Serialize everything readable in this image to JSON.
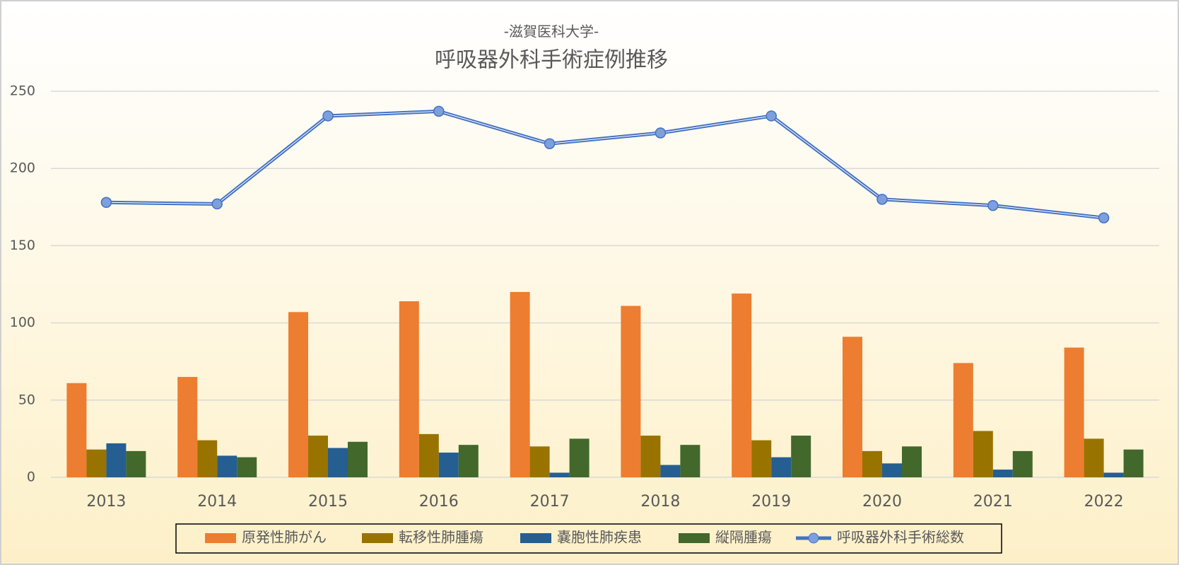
{
  "chart_data": {
    "type": "bar",
    "subtitle": "-滋賀医科大学-",
    "title": "呼吸器外科手術症例推移",
    "categories": [
      "2013",
      "2014",
      "2015",
      "2016",
      "2017",
      "2018",
      "2019",
      "2020",
      "2021",
      "2022"
    ],
    "series": [
      {
        "name": "原発性肺がん",
        "type": "bar",
        "color": "#ed7d31",
        "values": [
          61,
          65,
          107,
          114,
          120,
          111,
          119,
          91,
          74,
          84
        ]
      },
      {
        "name": "転移性肺腫瘍",
        "type": "bar",
        "color": "#997300",
        "values": [
          18,
          24,
          27,
          28,
          20,
          27,
          24,
          17,
          30,
          25
        ]
      },
      {
        "name": "嚢胞性肺疾患",
        "type": "bar",
        "color": "#255e91",
        "values": [
          22,
          14,
          19,
          16,
          3,
          8,
          13,
          9,
          5,
          3
        ]
      },
      {
        "name": "縦隔腫瘍",
        "type": "bar",
        "color": "#43682b",
        "values": [
          17,
          13,
          23,
          21,
          25,
          21,
          27,
          20,
          17,
          18
        ]
      },
      {
        "name": "呼吸器外科手術総数",
        "type": "line",
        "color": "#4472c4",
        "values": [
          178,
          177,
          234,
          237,
          216,
          223,
          234,
          180,
          176,
          168
        ]
      }
    ],
    "ylim": [
      0,
      250
    ],
    "yticks": [
      0,
      50,
      100,
      150,
      200,
      250
    ],
    "grid": true,
    "legend": "bottom"
  }
}
